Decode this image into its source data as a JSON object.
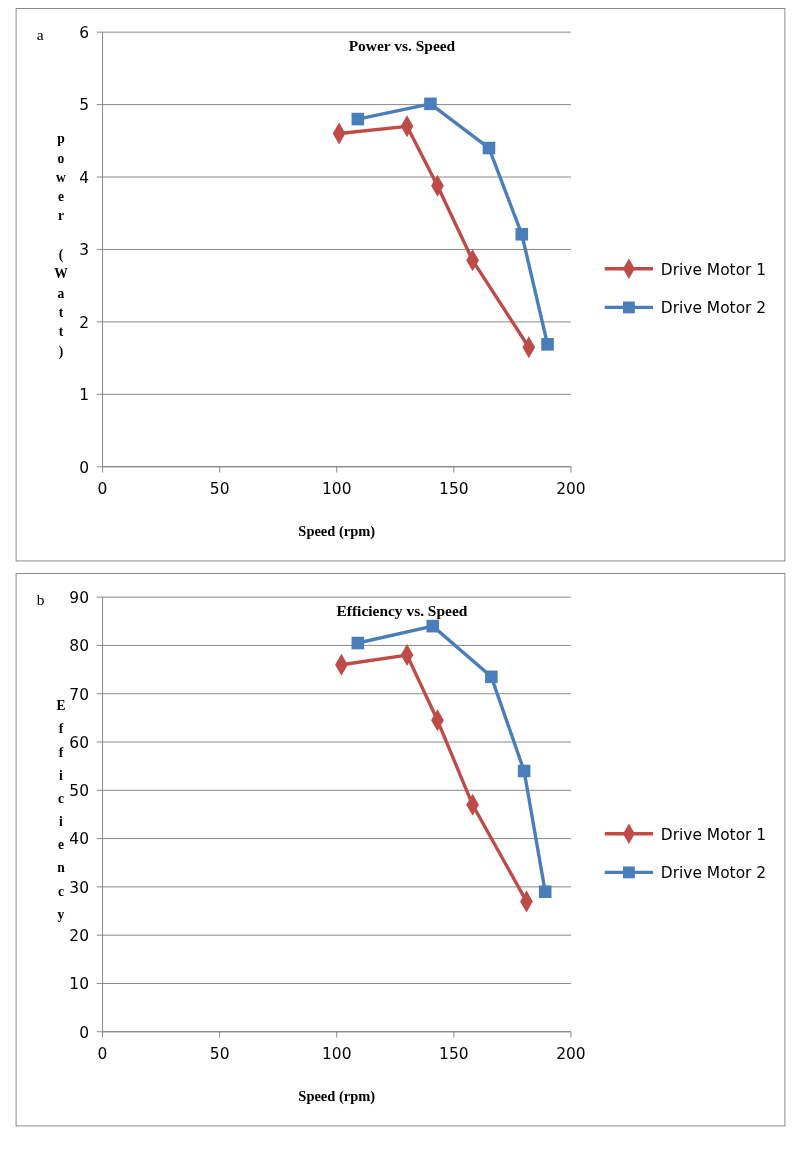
{
  "chart_data": [
    {
      "type": "line",
      "title": "Power vs. Speed",
      "xlabel": "Speed (rpm)",
      "ylabel": "power (Watt)",
      "annotations": [
        "a"
      ],
      "xlim": [
        0,
        200
      ],
      "xticks": [
        0,
        50,
        100,
        150,
        200
      ],
      "ylim": [
        0,
        6
      ],
      "yticks": [
        0,
        1,
        2,
        3,
        4,
        5,
        6
      ],
      "grid": "y",
      "legend": "right",
      "line_style": "solid",
      "series": [
        {
          "name": "Drive Motor 1",
          "color": "#be4b48",
          "marker": "diamond",
          "x": [
            101,
            130,
            143,
            158,
            182
          ],
          "values": [
            4.6,
            4.7,
            3.88,
            2.85,
            1.65
          ]
        },
        {
          "name": "Drive Motor 2",
          "color": "#4a7ebb",
          "marker": "square",
          "x": [
            109,
            140,
            165,
            179,
            190
          ],
          "values": [
            4.8,
            5.01,
            4.4,
            3.21,
            1.69
          ]
        }
      ]
    },
    {
      "type": "line",
      "title": "Efficiency vs. Speed",
      "xlabel": "Speed (rpm)",
      "ylabel": "Efficiency",
      "annotations": [
        "b"
      ],
      "xlim": [
        0,
        200
      ],
      "xticks": [
        0,
        50,
        100,
        150,
        200
      ],
      "ylim": [
        0,
        90
      ],
      "yticks": [
        0,
        10,
        20,
        30,
        40,
        50,
        60,
        70,
        80,
        90
      ],
      "grid": "y",
      "legend": "right",
      "line_style": "solid",
      "series": [
        {
          "name": "Drive Motor 1",
          "color": "#be4b48",
          "marker": "diamond",
          "x": [
            102,
            130,
            143,
            158,
            181
          ],
          "values": [
            76,
            78,
            64.5,
            47,
            27
          ]
        },
        {
          "name": "Drive Motor 2",
          "color": "#4a7ebb",
          "marker": "square",
          "x": [
            109,
            141,
            166,
            180,
            189
          ],
          "values": [
            80.5,
            84,
            73.5,
            54,
            29
          ]
        }
      ]
    }
  ]
}
